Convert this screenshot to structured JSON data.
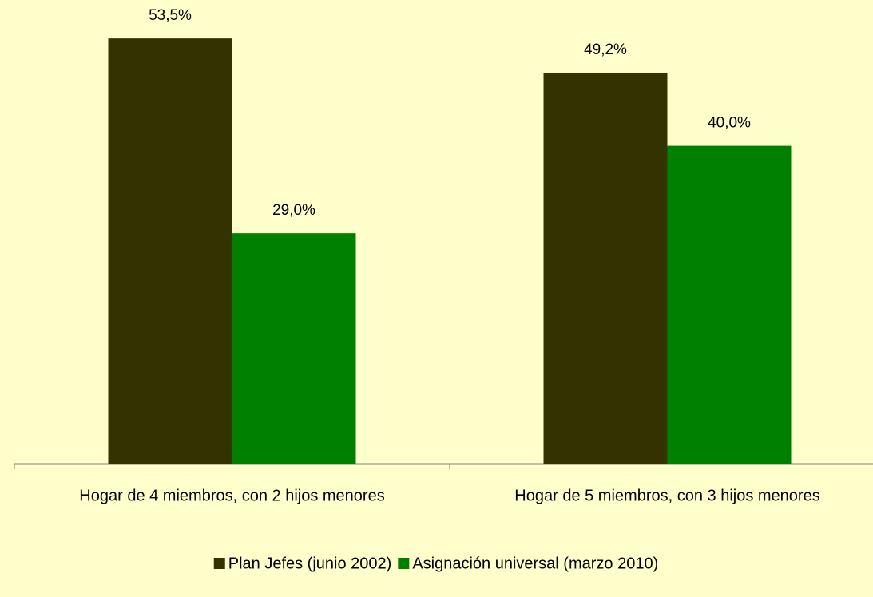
{
  "chart_data": {
    "type": "bar",
    "categories": [
      "Hogar de 4 miembros, con 2 hijos menores",
      "Hogar de 5 miembros, con 3 hijos menores"
    ],
    "series": [
      {
        "name": "Plan Jefes (junio 2002)",
        "color": "#333300",
        "values": [
          53.5,
          49.2
        ],
        "value_labels": [
          "53,5%",
          "49,2%"
        ]
      },
      {
        "name": "Asignación universal (marzo 2010)",
        "color": "#008000",
        "values": [
          29.0,
          40.0
        ],
        "value_labels": [
          "29,0%",
          "40,0%"
        ]
      }
    ],
    "ylim": [
      0,
      60
    ]
  }
}
